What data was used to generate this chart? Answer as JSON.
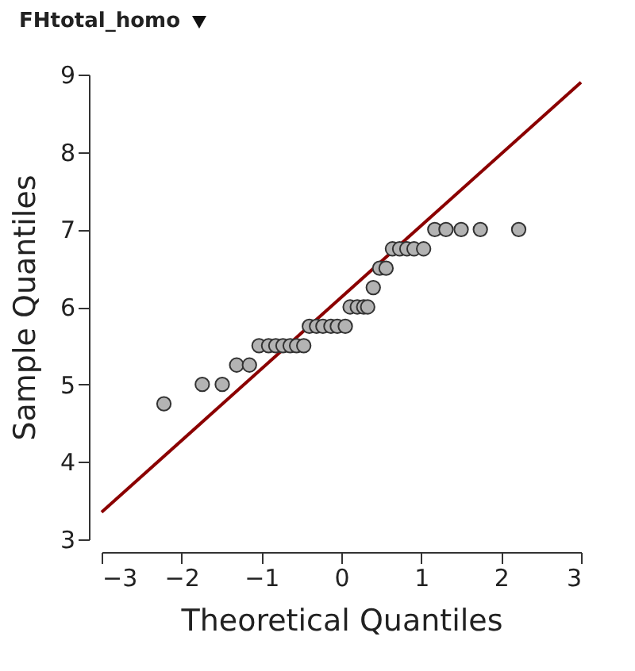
{
  "chart_data": {
    "type": "scatter",
    "title": "FHtotal_homo",
    "xlabel": "Theoretical Quantiles",
    "ylabel": "Sample Quantiles",
    "xlim": [
      -3,
      3
    ],
    "ylim": [
      3,
      9
    ],
    "xticks": [
      -3,
      -2,
      -1,
      0,
      1,
      2,
      3
    ],
    "yticks": [
      3,
      4,
      5,
      6,
      7,
      8,
      9
    ],
    "grid": false,
    "series": [
      {
        "marker": "circle",
        "color": "#b3b3b3",
        "x": [
          -2.22,
          -1.74,
          -1.49,
          -1.31,
          -1.15,
          -1.03,
          -0.91,
          -0.82,
          -0.73,
          -0.64,
          -0.56,
          -0.47,
          -0.4,
          -0.31,
          -0.23,
          -0.13,
          -0.05,
          0.05,
          0.11,
          0.2,
          0.28,
          0.33,
          0.4,
          0.48,
          0.56,
          0.64,
          0.73,
          0.82,
          0.91,
          1.03,
          1.17,
          1.31,
          1.5,
          1.74,
          2.22
        ],
        "values": [
          4.75,
          5,
          5,
          5.25,
          5.25,
          5.5,
          5.5,
          5.5,
          5.5,
          5.5,
          5.5,
          5.5,
          5.75,
          5.75,
          5.75,
          5.75,
          5.75,
          5.75,
          6,
          6,
          6,
          6,
          6.25,
          6.5,
          6.5,
          6.75,
          6.75,
          6.75,
          6.75,
          6.75,
          7,
          7,
          7,
          7,
          7
        ]
      },
      {
        "type": "line",
        "marker": "none",
        "color": "#8b0000",
        "x": [
          -3,
          3
        ],
        "values": [
          3.35,
          8.9
        ]
      }
    ]
  }
}
